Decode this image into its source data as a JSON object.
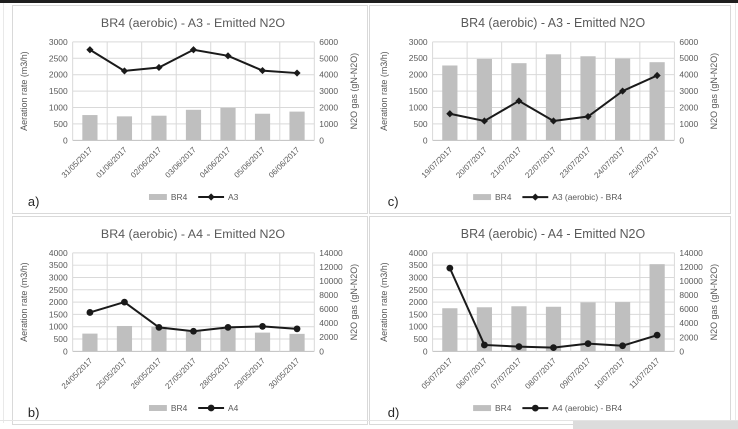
{
  "page": {
    "bg": "#ffffff",
    "top_bar_color": "#1f1f1f",
    "bottom_strip_color": "#dcdcdc"
  },
  "colors": {
    "bar": "#bfbfbf",
    "line": "#1a1a1a",
    "grid": "#d9d9d9",
    "axis_line": "#bfbfbf",
    "tick_text": "#595959",
    "axis_label_text": "#595959",
    "title_text": "#595959",
    "corner_label_text": "#262626"
  },
  "chart_data": [
    {
      "id": "a",
      "type": "bar",
      "subtype": "bar+line-dual-axis",
      "title": "BR4 (aerobic) - A3 - Emitted N2O",
      "corner_label": "a)",
      "grid": true,
      "legend_position": "bottom",
      "left_axis": {
        "label": "Aeration rate (m3/h)",
        "min": 0,
        "max": 3000,
        "ticks": [
          0,
          500,
          1000,
          1500,
          2000,
          2500,
          3000
        ]
      },
      "right_axis": {
        "label": "N2O gas (gN-N2O)",
        "min": 0,
        "max": 6000,
        "ticks": [
          0,
          1000,
          2000,
          3000,
          4000,
          5000,
          6000
        ]
      },
      "categories": [
        "31/05/2017",
        "01/06/2017",
        "02/06/2017",
        "03/06/2017",
        "04/06/2017",
        "05/06/2017",
        "06/06/2017"
      ],
      "series": [
        {
          "name": "BR4",
          "kind": "bar",
          "axis": "left",
          "values": [
            770,
            730,
            750,
            930,
            990,
            810,
            875
          ]
        },
        {
          "name": "A3",
          "kind": "line",
          "axis": "right",
          "marker": "diamond",
          "values": [
            5520,
            4230,
            4440,
            5520,
            5150,
            4250,
            4100
          ]
        }
      ]
    },
    {
      "id": "c",
      "type": "bar",
      "subtype": "bar+line-dual-axis",
      "title": "BR4 (aerobic) - A3 - Emitted N2O",
      "corner_label": "c)",
      "grid": true,
      "legend_position": "bottom",
      "left_axis": {
        "label": "Aeration rate (m3/h)",
        "min": 0,
        "max": 3000,
        "ticks": [
          0,
          500,
          1000,
          1500,
          2000,
          2500,
          3000
        ]
      },
      "right_axis": {
        "label": "N2O gas (gN-N2O)",
        "min": 0,
        "max": 6000,
        "ticks": [
          0,
          1000,
          2000,
          3000,
          4000,
          5000,
          6000
        ]
      },
      "categories": [
        "19/07/2017",
        "20/07/2017",
        "21/07/2017",
        "22/07/2017",
        "23/07/2017",
        "24/07/2017",
        "25/07/2017"
      ],
      "series": [
        {
          "name": "BR4",
          "kind": "bar",
          "axis": "left",
          "values": [
            2280,
            2480,
            2350,
            2620,
            2560,
            2490,
            2380
          ]
        },
        {
          "name": "A3 (aerobic) - BR4",
          "kind": "line",
          "axis": "right",
          "marker": "diamond",
          "values": [
            1620,
            1180,
            2400,
            1180,
            1450,
            3000,
            3950
          ]
        }
      ]
    },
    {
      "id": "b",
      "type": "bar",
      "subtype": "bar+line-dual-axis",
      "title": "BR4 (aerobic) - A4 - Emitted N2O",
      "corner_label": "b)",
      "grid": true,
      "legend_position": "bottom",
      "left_axis": {
        "label": "Aeration rate (m3/h)",
        "min": 0,
        "max": 4000,
        "ticks": [
          0,
          500,
          1000,
          1500,
          2000,
          2500,
          3000,
          3500,
          4000
        ]
      },
      "right_axis": {
        "label": "N2O gas (gN-N2O)",
        "min": 0,
        "max": 14000,
        "ticks": [
          0,
          2000,
          4000,
          6000,
          8000,
          10000,
          12000,
          14000
        ]
      },
      "categories": [
        "24/05/2017",
        "25/05/2017",
        "26/05/2017",
        "27/05/2017",
        "28/05/2017",
        "29/05/2017",
        "30/05/2017"
      ],
      "series": [
        {
          "name": "BR4",
          "kind": "bar",
          "axis": "left",
          "values": [
            720,
            1030,
            1000,
            800,
            940,
            760,
            710
          ]
        },
        {
          "name": "A4",
          "kind": "line",
          "axis": "right",
          "marker": "circle",
          "values": [
            5530,
            7000,
            3400,
            2850,
            3400,
            3550,
            3200
          ]
        }
      ]
    },
    {
      "id": "d",
      "type": "bar",
      "subtype": "bar+line-dual-axis",
      "title": "BR4 (aerobic) - A4 - Emitted N2O",
      "corner_label": "d)",
      "grid": true,
      "legend_position": "bottom",
      "left_axis": {
        "label": "Aeration rate (m3/h)",
        "min": 0,
        "max": 4000,
        "ticks": [
          0,
          500,
          1000,
          1500,
          2000,
          2500,
          3000,
          3500,
          4000
        ]
      },
      "right_axis": {
        "label": "N2O gas (gN-N2O)",
        "min": 0,
        "max": 14000,
        "ticks": [
          0,
          2000,
          4000,
          6000,
          8000,
          10000,
          12000,
          14000
        ]
      },
      "categories": [
        "05/07/2017",
        "06/07/2017",
        "07/07/2017",
        "08/07/2017",
        "09/07/2017",
        "10/07/2017",
        "11/07/2017"
      ],
      "series": [
        {
          "name": "BR4",
          "kind": "bar",
          "axis": "left",
          "values": [
            1750,
            1790,
            1830,
            1810,
            1985,
            2000,
            3540
          ]
        },
        {
          "name": "A4 (aerobic) - BR4",
          "kind": "line",
          "axis": "right",
          "marker": "circle",
          "values": [
            11830,
            910,
            670,
            530,
            1100,
            800,
            2300
          ]
        }
      ]
    }
  ]
}
